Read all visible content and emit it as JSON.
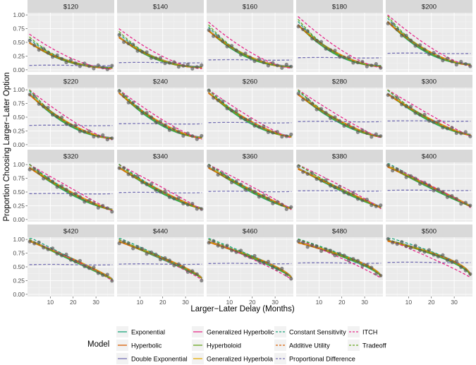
{
  "chart_data": {
    "type": "line",
    "facets": [
      "$120",
      "$140",
      "$160",
      "$180",
      "$200",
      "$220",
      "$240",
      "$260",
      "$280",
      "$300",
      "$320",
      "$340",
      "$360",
      "$380",
      "$400",
      "$420",
      "$440",
      "$460",
      "$480",
      "$500"
    ],
    "xlabel": "Larger−Later Delay (Months)",
    "ylabel": "Proportion Choosing Larger−Later Option",
    "xlim": [
      0,
      38
    ],
    "ylim": [
      0,
      1
    ],
    "x_ticks": [
      10,
      20,
      30
    ],
    "x_tick_labels": [
      "10",
      "20",
      "30"
    ],
    "y_ticks": [
      0,
      0.25,
      0.5,
      0.75,
      1.0
    ],
    "y_tick_labels": [
      "0.00",
      "0.25",
      "0.50",
      "0.75",
      "1.00"
    ],
    "delays": [
      1,
      3,
      5,
      7,
      9,
      11,
      13,
      15,
      17,
      19,
      21,
      23,
      25,
      27,
      29,
      31,
      33,
      35,
      37
    ],
    "observed_start": [
      0.5,
      0.6,
      0.72,
      0.82,
      0.88,
      0.92,
      0.95,
      0.95,
      0.92,
      0.93,
      0.95,
      0.95,
      0.95,
      0.93,
      0.97,
      0.98,
      0.97,
      0.96,
      0.95,
      0.98
    ],
    "observed_end": [
      0.04,
      0.05,
      0.06,
      0.07,
      0.1,
      0.12,
      0.13,
      0.15,
      0.15,
      0.18,
      0.18,
      0.2,
      0.2,
      0.22,
      0.24,
      0.27,
      0.29,
      0.3,
      0.32,
      0.33
    ],
    "proportional_difference_level": [
      0.08,
      0.13,
      0.18,
      0.22,
      0.3,
      0.35,
      0.38,
      0.4,
      0.42,
      0.43,
      0.47,
      0.49,
      0.51,
      0.52,
      0.53,
      0.54,
      0.55,
      0.56,
      0.57,
      0.58
    ],
    "legend_title": "Model",
    "series": [
      {
        "name": "Exponential",
        "color": "#1aa37a",
        "dash": "solid"
      },
      {
        "name": "Hyperbolic",
        "color": "#d95f02",
        "dash": "solid"
      },
      {
        "name": "Double Exponential",
        "color": "#7570b3",
        "dash": "solid"
      },
      {
        "name": "Generalized Hyperbolic",
        "color": "#e7298a",
        "dash": "solid"
      },
      {
        "name": "Hyperboloid",
        "color": "#66a61e",
        "dash": "solid"
      },
      {
        "name": "Generalized Hyperbola",
        "color": "#e6ab02",
        "dash": "solid"
      },
      {
        "name": "Constant Sensitivity",
        "color": "#1aa37a",
        "dash": "dashed"
      },
      {
        "name": "Additive Utility",
        "color": "#d95f02",
        "dash": "dashed"
      },
      {
        "name": "Proportional Difference",
        "color": "#7570b3",
        "dash": "dashed"
      },
      {
        "name": "ITCH",
        "color": "#e7298a",
        "dash": "dashed"
      },
      {
        "name": "Tradeoff",
        "color": "#66a61e",
        "dash": "dashed"
      }
    ],
    "legend_placement": "bottom"
  }
}
